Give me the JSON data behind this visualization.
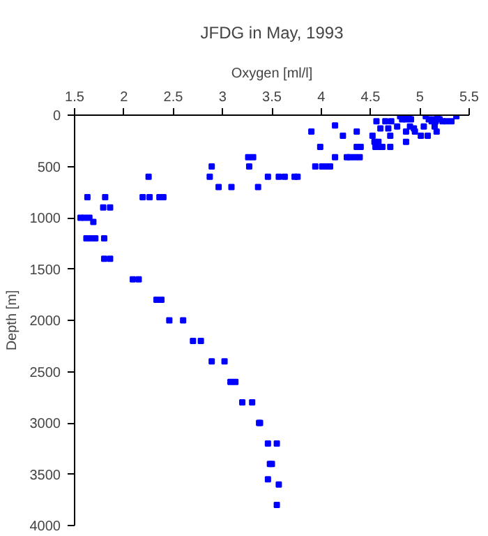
{
  "chart_data": {
    "type": "scatter",
    "title": "JFDG in May, 1993",
    "xlabel": "Oxygen [ml/l]",
    "ylabel": "Depth [m]",
    "xlim": [
      1.5,
      5.5
    ],
    "xticks": [
      1.5,
      2,
      2.5,
      3,
      3.5,
      4,
      4.5,
      5,
      5.5
    ],
    "ylim": [
      4000,
      0
    ],
    "yticks": [
      0,
      500,
      1000,
      1500,
      2000,
      2500,
      3000,
      3500,
      4000
    ],
    "grid": false,
    "marker": "square",
    "series": [
      {
        "color": "#0000ff",
        "x": [
          1.63,
          1.81,
          1.79,
          1.86,
          2.19,
          2.26,
          2.36,
          2.4,
          2.25,
          2.87,
          2.89,
          2.96,
          3.09,
          3.26,
          3.31,
          3.27,
          3.36,
          3.46,
          3.57,
          3.63,
          3.73,
          3.76,
          3.9,
          3.99,
          3.94,
          4.01,
          4.05,
          4.09,
          4.14,
          4.14,
          4.22,
          4.26,
          4.29,
          4.34,
          4.39,
          4.36,
          4.36,
          4.4,
          4.52,
          4.54,
          4.58,
          4.55,
          4.6,
          4.62,
          4.56,
          4.6,
          4.65,
          4.68,
          4.71,
          4.7,
          4.7,
          4.77,
          4.8,
          4.82,
          4.85,
          4.86,
          4.89,
          4.91,
          4.86,
          4.86,
          4.9,
          4.94,
          4.95,
          5.01,
          5.08,
          5.04,
          5.06,
          5.09,
          5.12,
          5.14,
          5.16,
          5.15,
          5.17,
          5.23,
          5.27,
          5.32,
          5.37,
          5.18,
          5.2,
          1.56,
          1.6,
          1.65,
          1.69,
          1.62,
          1.67,
          1.71,
          1.8,
          1.8,
          1.86,
          2.09,
          2.15,
          2.33,
          2.38,
          2.46,
          2.6,
          2.7,
          2.78,
          2.89,
          3.02,
          3.08,
          3.13,
          3.2,
          3.3,
          3.37,
          3.38,
          3.46,
          3.55,
          3.48,
          3.5,
          3.46,
          3.57,
          3.55
        ],
        "values": [
          800,
          800,
          900,
          900,
          800,
          800,
          800,
          800,
          600,
          600,
          500,
          700,
          700,
          410,
          410,
          500,
          700,
          600,
          600,
          600,
          600,
          600,
          160,
          310,
          500,
          500,
          500,
          500,
          100,
          410,
          200,
          410,
          410,
          410,
          410,
          160,
          310,
          310,
          200,
          260,
          260,
          310,
          310,
          310,
          60,
          130,
          60,
          130,
          60,
          200,
          310,
          110,
          10,
          40,
          10,
          40,
          10,
          40,
          160,
          260,
          110,
          130,
          160,
          200,
          200,
          110,
          10,
          40,
          60,
          40,
          60,
          110,
          160,
          60,
          60,
          60,
          10,
          10,
          40,
          1000,
          1000,
          1000,
          1040,
          1200,
          1200,
          1200,
          1200,
          1400,
          1400,
          1600,
          1600,
          1800,
          1800,
          2000,
          2000,
          2200,
          2200,
          2400,
          2400,
          2600,
          2600,
          2800,
          2800,
          3000,
          3000,
          3200,
          3200,
          3400,
          3400,
          3550,
          3600,
          3800
        ]
      }
    ]
  }
}
